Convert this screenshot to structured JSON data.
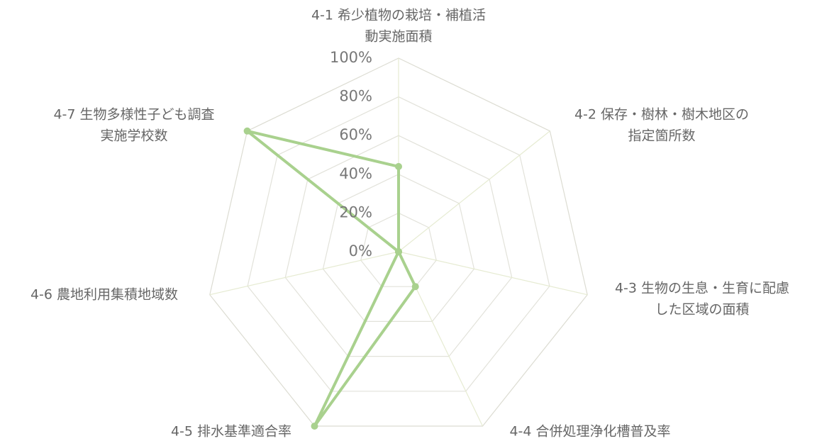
{
  "chart_data": {
    "type": "radar",
    "categories": [
      [
        "4-1 希少植物の栽培・補植活",
        "動実施面積"
      ],
      [
        "4-2 保存・樹林・樹木地区の",
        "指定箇所数"
      ],
      [
        "4-3 生物の生息・生育に配慮",
        "した区域の面積"
      ],
      [
        "4-4 合併処理浄化槽普及率"
      ],
      [
        "4-5 排水基準適合率"
      ],
      [
        "4-6 農地利用集積地域数"
      ],
      [
        "4-7 生物多様性子ども調査",
        "実施学校数"
      ]
    ],
    "series": [
      {
        "values": [
          44,
          0,
          0,
          20,
          100,
          0,
          100
        ]
      }
    ],
    "r_ticks": [
      "0%",
      "20%",
      "40%",
      "60%",
      "80%",
      "100%"
    ],
    "r_range": [
      0,
      100
    ],
    "grid": true,
    "colors": {
      "series": "#a9d18e",
      "grid": "#e2e2da",
      "spoke": "#e6ebd2",
      "tick_text": "#777777",
      "label_text": "#666666"
    }
  }
}
